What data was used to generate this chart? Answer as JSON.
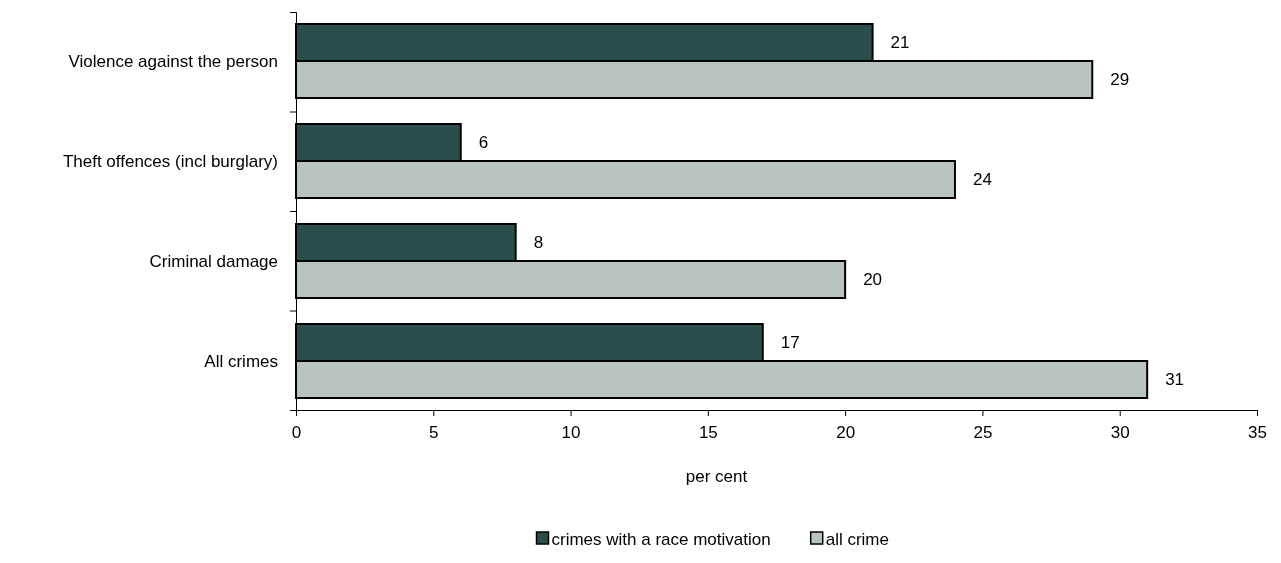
{
  "chart_data": {
    "type": "bar",
    "orientation": "horizontal",
    "xlabel": "per cent",
    "categories": [
      "Violence against the person",
      "Theft offences (incl burglary)",
      "Criminal damage",
      "All crimes"
    ],
    "series": [
      {
        "name": "crimes with a race motivation",
        "color": "#2a4f4b",
        "values": [
          21,
          6,
          8,
          17
        ]
      },
      {
        "name": "all crime",
        "color": "#b9c4c2",
        "values": [
          29,
          24,
          20,
          31
        ]
      }
    ],
    "xlim": [
      0,
      35
    ],
    "xticks": [
      0,
      5,
      10,
      15,
      20,
      25,
      30,
      35
    ],
    "data_labels": true,
    "legend": "bottom",
    "grid": false
  }
}
